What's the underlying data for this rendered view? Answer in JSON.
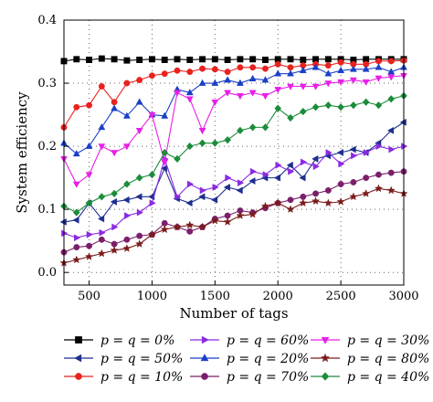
{
  "chart_data": {
    "type": "line",
    "xlabel": "Number of tags",
    "ylabel": "System efficiency",
    "xlim": [
      300,
      3000
    ],
    "ylim": [
      -0.02,
      0.4
    ],
    "x_ticks": [
      500,
      1000,
      1500,
      2000,
      2500,
      3000
    ],
    "y_ticks": [
      0.0,
      0.1,
      0.2,
      0.3,
      0.4
    ],
    "grid": true,
    "legend_position": "bottom",
    "x": [
      300,
      400,
      500,
      600,
      700,
      800,
      900,
      1000,
      1100,
      1200,
      1300,
      1400,
      1500,
      1600,
      1700,
      1800,
      1900,
      2000,
      2100,
      2200,
      2300,
      2400,
      2500,
      2600,
      2700,
      2800,
      2900,
      3000
    ],
    "series": [
      {
        "name": "p = q = 0%",
        "color": "#000000",
        "marker": "square",
        "values": [
          0.335,
          0.338,
          0.337,
          0.339,
          0.338,
          0.336,
          0.337,
          0.338,
          0.337,
          0.338,
          0.337,
          0.338,
          0.338,
          0.337,
          0.338,
          0.338,
          0.337,
          0.338,
          0.338,
          0.337,
          0.338,
          0.338,
          0.338,
          0.337,
          0.338,
          0.338,
          0.338,
          0.338
        ]
      },
      {
        "name": "p = q = 50%",
        "color": "#1f2f8f",
        "marker": "triangle-left",
        "values": [
          0.08,
          0.083,
          0.11,
          0.085,
          0.112,
          0.115,
          0.12,
          0.12,
          0.165,
          0.117,
          0.11,
          0.12,
          0.115,
          0.135,
          0.13,
          0.145,
          0.15,
          0.15,
          0.17,
          0.15,
          0.18,
          0.185,
          0.19,
          0.195,
          0.19,
          0.205,
          0.225,
          0.238
        ]
      },
      {
        "name": "p = q = 10%",
        "color": "#e8221e",
        "marker": "circle",
        "values": [
          0.23,
          0.262,
          0.265,
          0.295,
          0.27,
          0.3,
          0.305,
          0.312,
          0.315,
          0.32,
          0.318,
          0.323,
          0.322,
          0.318,
          0.325,
          0.325,
          0.323,
          0.33,
          0.325,
          0.328,
          0.33,
          0.328,
          0.333,
          0.33,
          0.33,
          0.335,
          0.335,
          0.336
        ]
      },
      {
        "name": "p = q = 60%",
        "color": "#8a2be2",
        "marker": "triangle-right",
        "values": [
          0.062,
          0.055,
          0.06,
          0.063,
          0.072,
          0.09,
          0.095,
          0.11,
          0.18,
          0.12,
          0.14,
          0.13,
          0.135,
          0.15,
          0.142,
          0.16,
          0.155,
          0.17,
          0.16,
          0.175,
          0.168,
          0.19,
          0.172,
          0.185,
          0.19,
          0.2,
          0.195,
          0.2
        ]
      },
      {
        "name": "p = q = 20%",
        "color": "#1a3fc7",
        "marker": "triangle-up",
        "values": [
          0.205,
          0.188,
          0.2,
          0.23,
          0.26,
          0.248,
          0.27,
          0.25,
          0.248,
          0.29,
          0.285,
          0.3,
          0.3,
          0.305,
          0.3,
          0.307,
          0.305,
          0.315,
          0.315,
          0.32,
          0.325,
          0.315,
          0.32,
          0.322,
          0.322,
          0.325,
          0.318,
          0.325
        ]
      },
      {
        "name": "p = q = 70%",
        "color": "#7b1f6a",
        "marker": "circle",
        "values": [
          0.032,
          0.04,
          0.042,
          0.052,
          0.045,
          0.052,
          0.058,
          0.06,
          0.078,
          0.072,
          0.065,
          0.072,
          0.085,
          0.09,
          0.098,
          0.095,
          0.102,
          0.11,
          0.115,
          0.12,
          0.125,
          0.13,
          0.14,
          0.143,
          0.15,
          0.155,
          0.158,
          0.16
        ]
      },
      {
        "name": "p = q = 30%",
        "color": "#e81fe8",
        "marker": "triangle-down",
        "values": [
          0.18,
          0.14,
          0.155,
          0.2,
          0.19,
          0.2,
          0.225,
          0.25,
          0.175,
          0.285,
          0.275,
          0.225,
          0.27,
          0.285,
          0.28,
          0.285,
          0.28,
          0.29,
          0.295,
          0.295,
          0.295,
          0.3,
          0.302,
          0.305,
          0.302,
          0.308,
          0.31,
          0.312
        ]
      },
      {
        "name": "p = q = 80%",
        "color": "#7a1c1c",
        "marker": "star",
        "values": [
          0.015,
          0.02,
          0.025,
          0.03,
          0.035,
          0.038,
          0.045,
          0.06,
          0.068,
          0.072,
          0.075,
          0.072,
          0.082,
          0.08,
          0.09,
          0.092,
          0.105,
          0.11,
          0.1,
          0.11,
          0.113,
          0.11,
          0.112,
          0.12,
          0.125,
          0.133,
          0.13,
          0.125
        ]
      },
      {
        "name": "p = q = 40%",
        "color": "#1a8c3a",
        "marker": "diamond",
        "values": [
          0.105,
          0.095,
          0.11,
          0.12,
          0.125,
          0.14,
          0.15,
          0.155,
          0.19,
          0.18,
          0.2,
          0.205,
          0.205,
          0.21,
          0.225,
          0.23,
          0.23,
          0.26,
          0.245,
          0.255,
          0.262,
          0.265,
          0.262,
          0.265,
          0.27,
          0.265,
          0.275,
          0.28
        ]
      }
    ]
  }
}
